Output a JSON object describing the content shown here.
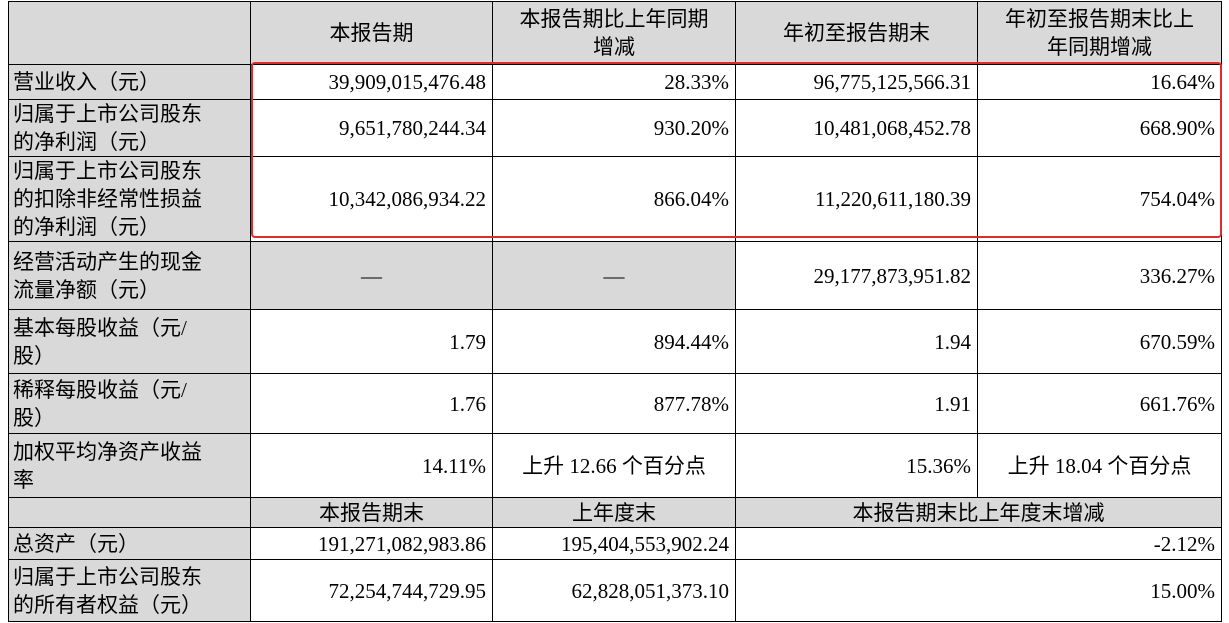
{
  "table": {
    "columns": [
      "本报告期",
      "本报告期比上年同期增减",
      "年初至报告期末",
      "年初至报告期末比上年同期增减"
    ],
    "rows": [
      {
        "label": "营业收入（元）",
        "values": [
          "39,909,015,476.48",
          "28.33%",
          "96,775,125,566.31",
          "16.64%"
        ]
      },
      {
        "label": "归属于上市公司股东的净利润（元）",
        "values": [
          "9,651,780,244.34",
          "930.20%",
          "10,481,068,452.78",
          "668.90%"
        ]
      },
      {
        "label": "归属于上市公司股东的扣除非经常性损益的净利润（元）",
        "values": [
          "10,342,086,934.22",
          "866.04%",
          "11,220,611,180.39",
          "754.04%"
        ]
      },
      {
        "label": "经营活动产生的现金流量净额（元）",
        "values": [
          "—",
          "—",
          "29,177,873,951.82",
          "336.27%"
        ]
      },
      {
        "label": "基本每股收益（元/股）",
        "values": [
          "1.79",
          "894.44%",
          "1.94",
          "670.59%"
        ]
      },
      {
        "label": "稀释每股收益（元/股）",
        "values": [
          "1.76",
          "877.78%",
          "1.91",
          "661.76%"
        ]
      },
      {
        "label": "加权平均净资产收益率",
        "values": [
          "14.11%",
          "上升 12.66 个百分点",
          "15.36%",
          "上升 18.04 个百分点"
        ]
      }
    ],
    "columns2": [
      "本报告期末",
      "上年度末",
      "本报告期末比上年度末增减"
    ],
    "rows2": [
      {
        "label": "总资产（元）",
        "values": [
          "191,271,082,983.86",
          "195,404,553,902.24",
          "-2.12%"
        ]
      },
      {
        "label": "归属于上市公司股东的所有者权益（元）",
        "values": [
          "72,254,744,729.95",
          "62,828,051,373.10",
          "15.00%"
        ]
      }
    ]
  }
}
